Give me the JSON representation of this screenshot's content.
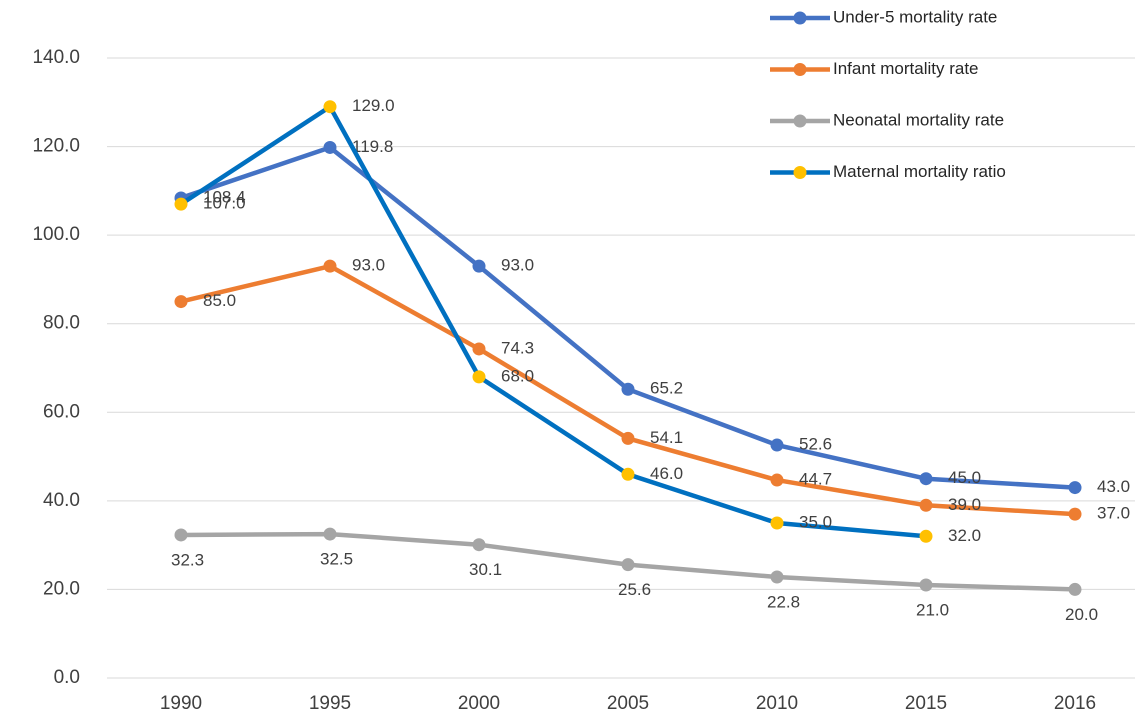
{
  "chart_data": {
    "type": "line",
    "categories": [
      "1990",
      "1995",
      "2000",
      "2005",
      "2010",
      "2015",
      "2016"
    ],
    "series": [
      {
        "name": "Under-5 mortality rate",
        "color": "#4472c4",
        "values": [
          108.4,
          119.8,
          93,
          65.2,
          52.6,
          45,
          43
        ],
        "value_labels": [
          "108.4",
          "119.8",
          "93.0",
          "65.2",
          "52.6",
          "45.0",
          "43.0"
        ]
      },
      {
        "name": "Infant mortality rate",
        "color": "#ed7d31",
        "values": [
          85,
          93,
          74.3,
          54.1,
          44.7,
          39,
          37
        ],
        "value_labels": [
          "85.0",
          "93.0",
          "74.3",
          "54.1",
          "44.7",
          "39.0",
          "37.0"
        ]
      },
      {
        "name": "Neonatal mortality rate",
        "color": "#a5a5a5",
        "values": [
          32.3,
          32.5,
          30.1,
          25.6,
          22.8,
          21,
          20
        ],
        "value_labels": [
          "32.3",
          "32.5",
          "30.1",
          "25.6",
          "22.8",
          "21.0",
          "20.0"
        ]
      },
      {
        "name": "Maternal mortality ratio",
        "color": "#0070c0",
        "marker_color": "#ffc000",
        "values": [
          107,
          129,
          68,
          46,
          35,
          32,
          null
        ],
        "value_labels": [
          "107.0",
          "129.0",
          "68.0",
          "46.0",
          "35.0",
          "32.0",
          null
        ]
      }
    ],
    "ylim": [
      0,
      140
    ],
    "yticks": [
      {
        "value": 0,
        "label": "0.0"
      },
      {
        "value": 20,
        "label": "20.0"
      },
      {
        "value": 40,
        "label": "40.0"
      },
      {
        "value": 60,
        "label": "60.0"
      },
      {
        "value": 80,
        "label": "80.0"
      },
      {
        "value": 100,
        "label": "100.0"
      },
      {
        "value": 120,
        "label": "120.0"
      },
      {
        "value": 140,
        "label": "140.0"
      }
    ],
    "grid": true,
    "legend": "top-right"
  }
}
